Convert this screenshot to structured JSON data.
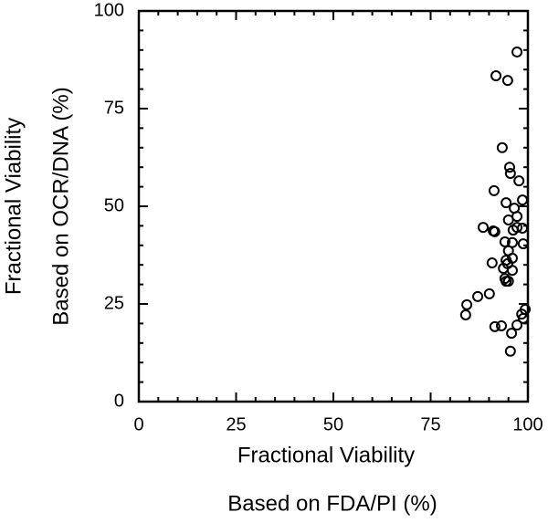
{
  "chart_data": {
    "type": "scatter",
    "ylabel": [
      "Fractional Viability",
      "Based on OCR/DNA (%)"
    ],
    "xlabel": [
      "Fractional Viability",
      "Based on FDA/PI (%)"
    ],
    "xlim": [
      0,
      100
    ],
    "ylim": [
      0,
      100
    ],
    "xticks": [
      0,
      25,
      50,
      75,
      100
    ],
    "yticks": [
      0,
      25,
      50,
      75,
      100
    ],
    "color": "#000000",
    "x": [
      97.2,
      91.8,
      94.8,
      93.4,
      95.3,
      95.5,
      97.7,
      91.3,
      98.6,
      94.4,
      96.5,
      97.2,
      95,
      88.5,
      91.1,
      91.5,
      97.2,
      98.6,
      96.2,
      94.1,
      96,
      98.8,
      95,
      96,
      90.8,
      94.4,
      94.8,
      93.7,
      96,
      94.1,
      95,
      94.4,
      90.1,
      87.1,
      84.3,
      84,
      99.3,
      98.4,
      98.8,
      97.2,
      93.2,
      91.5,
      95.8,
      95.5
    ],
    "values": [
      89.5,
      83.4,
      82.2,
      65,
      60,
      58.4,
      56.5,
      54,
      51.6,
      50.9,
      49.5,
      47.4,
      46.5,
      44.6,
      43.7,
      43.5,
      44.6,
      44.4,
      43.9,
      40.9,
      40.7,
      40.4,
      38.6,
      36.7,
      35.5,
      36.2,
      35.3,
      34.1,
      33.6,
      31.5,
      30.8,
      30.8,
      27.6,
      26.9,
      24.8,
      22.2,
      23.6,
      22.4,
      21.3,
      19.6,
      19.4,
      19.2,
      17.5,
      12.9
    ]
  }
}
